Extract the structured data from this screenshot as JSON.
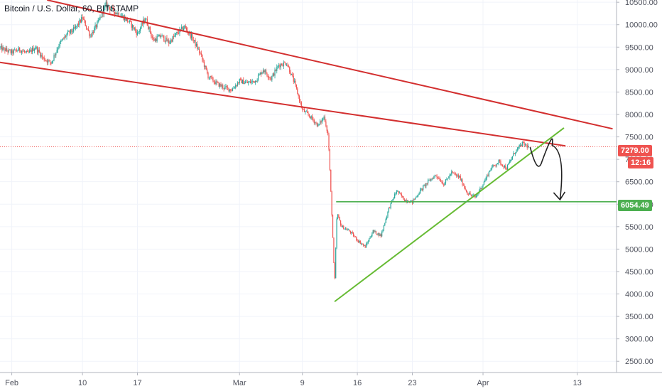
{
  "header": {
    "title": "Bitcoin / U.S. Dollar, 60, BITSTAMP"
  },
  "colors": {
    "up": "#26a69a",
    "down": "#ef5350",
    "resistance": "#d32f2f",
    "support": "#66bb33",
    "level": "#4caf50",
    "arrow": "#222222",
    "grid": "#f0f3fa",
    "axis_text": "#50535e"
  },
  "badges": {
    "last_price": "7279.00",
    "countdown": "12:16",
    "level_price": "6054.49"
  },
  "chart_data": {
    "type": "candlestick",
    "title": "Bitcoin / U.S. Dollar, 60, BITSTAMP",
    "ylim": [
      2250,
      10550
    ],
    "y_ticks": [
      "2500.00",
      "3000.00",
      "3500.00",
      "4000.00",
      "4500.00",
      "5000.00",
      "5500.00",
      "6000.00",
      "6500.00",
      "7000.00",
      "7500.00",
      "8000.00",
      "8500.00",
      "9000.00",
      "9500.00",
      "10000.00",
      "10500.00"
    ],
    "x_ticks": [
      {
        "label": "Feb",
        "day": 0
      },
      {
        "label": "10",
        "day": 9
      },
      {
        "label": "17",
        "day": 16
      },
      {
        "label": "Mar",
        "day": 29
      },
      {
        "label": "9",
        "day": 37
      },
      {
        "label": "16",
        "day": 44
      },
      {
        "label": "23",
        "day": 51
      },
      {
        "label": "Apr",
        "day": 60
      },
      {
        "label": "13",
        "day": 72
      }
    ],
    "xlim": [
      -1.5,
      77
    ],
    "price_path": [
      [
        -1.5,
        9480
      ],
      [
        0,
        9380
      ],
      [
        1,
        9450
      ],
      [
        2,
        9350
      ],
      [
        3,
        9500
      ],
      [
        4,
        9250
      ],
      [
        5,
        9150
      ],
      [
        6,
        9550
      ],
      [
        7,
        9780
      ],
      [
        8,
        9900
      ],
      [
        9,
        10150
      ],
      [
        10,
        9750
      ],
      [
        11,
        10050
      ],
      [
        12,
        10450
      ],
      [
        13,
        10300
      ],
      [
        14,
        10200
      ],
      [
        15,
        10050
      ],
      [
        16,
        9800
      ],
      [
        17,
        10150
      ],
      [
        18,
        9650
      ],
      [
        19,
        9750
      ],
      [
        20,
        9600
      ],
      [
        21,
        9800
      ],
      [
        22,
        9950
      ],
      [
        23,
        9700
      ],
      [
        24,
        9350
      ],
      [
        25,
        8850
      ],
      [
        26,
        8700
      ],
      [
        27,
        8600
      ],
      [
        28,
        8550
      ],
      [
        29,
        8750
      ],
      [
        30,
        8700
      ],
      [
        31,
        8750
      ],
      [
        32,
        9000
      ],
      [
        33,
        8800
      ],
      [
        34,
        9100
      ],
      [
        35,
        9150
      ],
      [
        36,
        8700
      ],
      [
        37,
        8100
      ],
      [
        38,
        7950
      ],
      [
        39,
        7750
      ],
      [
        39.8,
        7950
      ],
      [
        40.3,
        7500
      ],
      [
        40.8,
        5600
      ],
      [
        41.1,
        4200
      ],
      [
        41.4,
        5800
      ],
      [
        42,
        5500
      ],
      [
        43,
        5400
      ],
      [
        44,
        5200
      ],
      [
        45,
        5050
      ],
      [
        46,
        5400
      ],
      [
        47,
        5300
      ],
      [
        48,
        5900
      ],
      [
        49,
        6300
      ],
      [
        50,
        6100
      ],
      [
        51,
        6050
      ],
      [
        52,
        6300
      ],
      [
        53,
        6500
      ],
      [
        54,
        6650
      ],
      [
        55,
        6450
      ],
      [
        56,
        6700
      ],
      [
        57,
        6600
      ],
      [
        58,
        6250
      ],
      [
        59,
        6150
      ],
      [
        60,
        6450
      ],
      [
        61,
        6800
      ],
      [
        62,
        6950
      ],
      [
        63,
        6800
      ],
      [
        64,
        7150
      ],
      [
        65,
        7350
      ],
      [
        65.8,
        7279
      ]
    ],
    "candle_interval_days": 0.125,
    "lines": {
      "resistance_outer": {
        "from": [
          4.5,
          10550
        ],
        "to": [
          76.5,
          7680
        ]
      },
      "resistance_inner": {
        "from": [
          -1.5,
          9160
        ],
        "to": [
          70.5,
          7300
        ]
      },
      "support": {
        "from": [
          41.1,
          3830
        ],
        "to": [
          70.3,
          7700
        ]
      },
      "level": {
        "from": [
          41.3,
          6054.49
        ],
        "to": [
          77,
          6054.49
        ]
      },
      "last_price": 7279
    },
    "projection": [
      [
        66,
        7270
      ],
      [
        67.5,
        6950
      ],
      [
        68.8,
        7250
      ],
      [
        69.8,
        6850
      ],
      [
        69.8,
        6100
      ]
    ]
  }
}
